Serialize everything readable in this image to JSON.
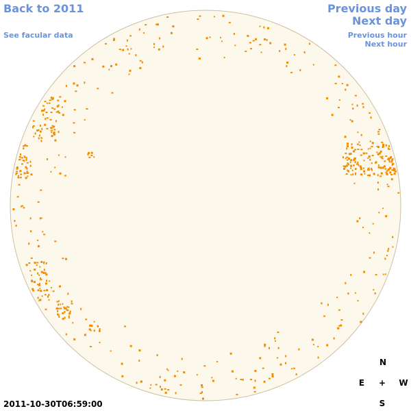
{
  "links": {
    "back": "Back to 2011",
    "facular": "See facular data",
    "previous_day": "Previous day",
    "next_day": "Next day",
    "previous_hour": "Previous hour",
    "next_hour": "Next hour"
  },
  "timestamp": "2011-10-30T06:59:00",
  "compass": {
    "north": "N",
    "east": "E",
    "center": "+",
    "west": "W",
    "south": "S"
  }
}
